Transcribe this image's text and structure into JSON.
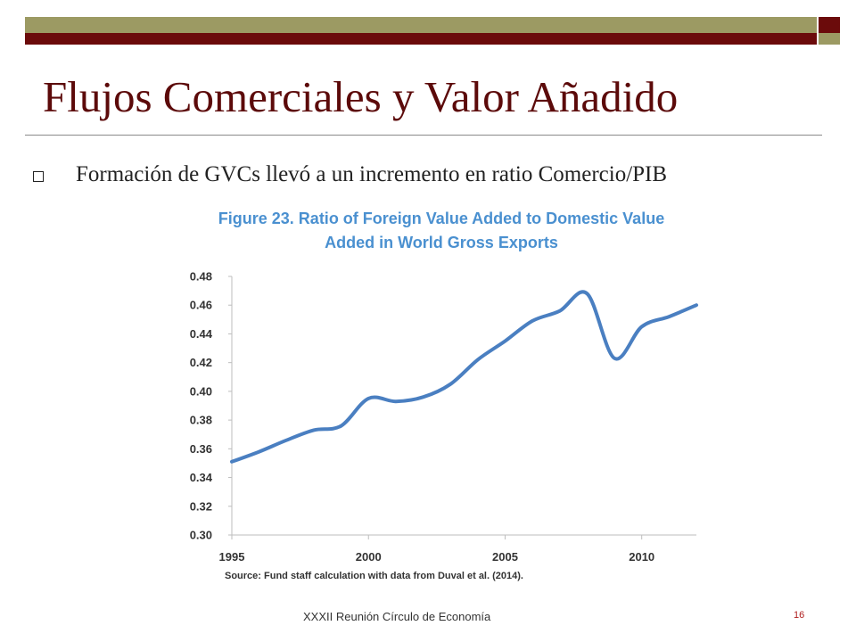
{
  "slide": {
    "title": "Flujos Comerciales y Valor Añadido",
    "bullet": "Formación de GVCs llevó a un incremento en ratio Comercio/PIB",
    "footer": "XXXII Reunión Círculo de Economía",
    "page_number": "16",
    "colors": {
      "olive": "#9c9a63",
      "dark_red": "#6b0b0b",
      "title": "#5c0a0a",
      "figure_title": "#4a90d0"
    }
  },
  "chart_data": {
    "type": "line",
    "title": "Figure 23. Ratio of Foreign Value Added to Domestic Value Added in World Gross Exports",
    "title_lines": [
      "Figure 23. Ratio of Foreign Value Added to Domestic Value",
      "Added in World Gross Exports"
    ],
    "xlabel": "",
    "ylabel": "",
    "xlim": [
      1995,
      2012
    ],
    "ylim": [
      0.3,
      0.48
    ],
    "x_ticks": [
      "1995",
      "2000",
      "2005",
      "2010"
    ],
    "y_ticks": [
      "0.48",
      "0.46",
      "0.44",
      "0.42",
      "0.40",
      "0.38",
      "0.36",
      "0.34",
      "0.32",
      "0.30"
    ],
    "grid": false,
    "legend": "none",
    "line_color": "#4a7fc1",
    "series": [
      {
        "x": [
          1995,
          1996,
          1997,
          1998,
          1999,
          2000,
          2001,
          2002,
          2003,
          2004,
          2005,
          2006,
          2007,
          2008,
          2009,
          2010,
          2011,
          2012
        ],
        "values": [
          0.351,
          0.358,
          0.366,
          0.373,
          0.376,
          0.395,
          0.393,
          0.396,
          0.405,
          0.422,
          0.435,
          0.449,
          0.456,
          0.468,
          0.423,
          0.445,
          0.452,
          0.46
        ]
      }
    ],
    "source": "Source: Fund staff calculation with data from Duval et al. (2014)."
  }
}
